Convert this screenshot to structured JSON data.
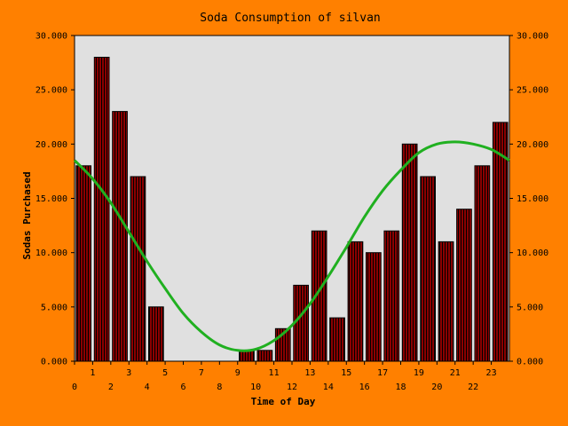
{
  "chart_data": {
    "type": "bar",
    "title": "Soda Consumption of silvan",
    "xlabel": "Time of Day",
    "ylabel": "Sodas Purchased",
    "x": [
      0,
      1,
      2,
      3,
      4,
      5,
      6,
      7,
      8,
      9,
      10,
      11,
      12,
      13,
      14,
      15,
      16,
      17,
      18,
      19,
      20,
      21,
      22,
      23
    ],
    "x_tick_labels": [
      "0",
      "1",
      "2",
      "3",
      "4",
      "5",
      "6",
      "7",
      "8",
      "9",
      "10",
      "11",
      "12",
      "13",
      "14",
      "15",
      "16",
      "17",
      "18",
      "19",
      "20",
      "21",
      "22",
      "23"
    ],
    "xlim": [
      0,
      24
    ],
    "ylim": [
      0,
      30
    ],
    "y_ticks": [
      0,
      5,
      10,
      15,
      20,
      25,
      30
    ],
    "y_tick_labels": [
      "0.000",
      "5.000",
      "10.000",
      "15.000",
      "20.000",
      "25.000",
      "30.000"
    ],
    "series": [
      {
        "type": "bar",
        "values": [
          18,
          28,
          23,
          17,
          5,
          0,
          0,
          0,
          0,
          1,
          1,
          3,
          7,
          12,
          4,
          11,
          10,
          12,
          20,
          17,
          11,
          14,
          18,
          22
        ]
      },
      {
        "type": "line",
        "x": [
          0,
          1,
          2,
          3,
          4,
          5,
          6,
          7,
          8,
          9,
          10,
          11,
          12,
          13,
          14,
          15,
          16,
          17,
          18,
          19,
          20,
          21,
          22,
          23,
          24
        ],
        "values": [
          18.5,
          16.8,
          14.6,
          11.9,
          9.2,
          6.7,
          4.4,
          2.7,
          1.5,
          1.0,
          1.1,
          1.9,
          3.3,
          5.3,
          7.8,
          10.5,
          13.3,
          15.7,
          17.6,
          19.2,
          20.0,
          20.2,
          20.0,
          19.5,
          18.5
        ]
      }
    ],
    "grid": false,
    "legend": "none",
    "colors": {
      "background": "#FF8000",
      "plot_area": "#E0E0E0",
      "bar_fill": "#8B0000",
      "bar_stripe": "#000000",
      "line": "#20B020"
    }
  }
}
